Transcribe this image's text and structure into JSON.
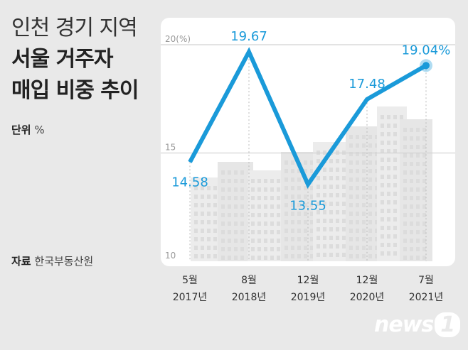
{
  "title": {
    "line1": "인천 경기 지역",
    "line2": "서울 거주자",
    "line3": "매입 비중 추이"
  },
  "unit": {
    "label": "단위",
    "value": "%"
  },
  "source": {
    "label": "자료",
    "value": "한국부동산원"
  },
  "logo": {
    "text": "news",
    "mark": "1"
  },
  "chart_data": {
    "type": "line",
    "title": "인천 경기 지역 서울 거주자 매입 비중 추이",
    "categories": [
      [
        "5월",
        "2017년"
      ],
      [
        "8월",
        "2018년"
      ],
      [
        "12월",
        "2019년"
      ],
      [
        "12월",
        "2020년"
      ],
      [
        "7월",
        "2021년"
      ]
    ],
    "series": [
      {
        "values": [
          14.58,
          19.67,
          13.55,
          17.48,
          19.04
        ]
      }
    ],
    "data_labels": [
      "14.58",
      "19.67",
      "13.55",
      "17.48",
      "19.04%"
    ],
    "yticks": [
      10,
      15,
      20
    ],
    "ytick_labels": [
      "10",
      "15",
      "20(%)"
    ],
    "ylim": [
      10,
      20
    ],
    "color": "#1a9ad9",
    "grid": true,
    "background_image": "apartment-buildings"
  }
}
